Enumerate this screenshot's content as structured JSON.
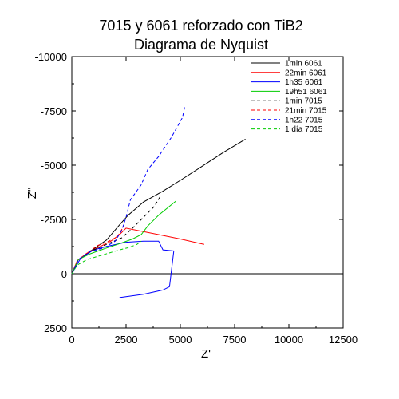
{
  "chart_data": {
    "type": "line",
    "title": "7015 y 6061 reforzado con TiB2",
    "subtitle": "Diagrama de Nyquist",
    "xlabel": "Z'",
    "ylabel": "Z\"",
    "xlim": [
      0,
      12500
    ],
    "ylim": [
      2500,
      -10000
    ],
    "y_inverted": true,
    "x_ticks": [
      "0",
      "2500",
      "5000",
      "7500",
      "10000",
      "12500"
    ],
    "x_tick_values": [
      0,
      2500,
      5000,
      7500,
      10000,
      12500
    ],
    "y_ticks": [
      "-10000",
      "-7500",
      "-5000",
      "-2500",
      "0",
      "2500"
    ],
    "y_tick_values": [
      -10000,
      -7500,
      -5000,
      -2500,
      0,
      2500
    ],
    "zero_line": true,
    "grid": false,
    "legend_position": "top-right",
    "series": [
      {
        "name": "1min 6061",
        "color": "#000000",
        "dash": "solid",
        "points": [
          [
            0,
            0
          ],
          [
            300,
            -650
          ],
          [
            800,
            -1000
          ],
          [
            1600,
            -1550
          ],
          [
            2200,
            -2250
          ],
          [
            2600,
            -2700
          ],
          [
            3300,
            -3300
          ],
          [
            4200,
            -3800
          ],
          [
            5000,
            -4300
          ],
          [
            6000,
            -4950
          ],
          [
            7000,
            -5600
          ],
          [
            8000,
            -6200
          ]
        ]
      },
      {
        "name": "22min 6061",
        "color": "#ff0000",
        "dash": "solid",
        "points": [
          [
            0,
            0
          ],
          [
            250,
            -600
          ],
          [
            700,
            -950
          ],
          [
            1300,
            -1250
          ],
          [
            1800,
            -1500
          ],
          [
            2200,
            -1800
          ],
          [
            2500,
            -2100
          ],
          [
            3000,
            -2000
          ],
          [
            4000,
            -1800
          ],
          [
            5000,
            -1600
          ],
          [
            6100,
            -1350
          ]
        ]
      },
      {
        "name": "1h35 6061",
        "color": "#0000ff",
        "dash": "solid",
        "points": [
          [
            0,
            0
          ],
          [
            400,
            -700
          ],
          [
            1000,
            -1100
          ],
          [
            1800,
            -1300
          ],
          [
            2500,
            -1450
          ],
          [
            3300,
            -1500
          ],
          [
            4000,
            -1500
          ],
          [
            4200,
            -1100
          ],
          [
            4700,
            -1050
          ],
          [
            4500,
            600
          ],
          [
            4200,
            750
          ],
          [
            3300,
            950
          ],
          [
            2200,
            1100
          ]
        ]
      },
      {
        "name": "19h51 6061",
        "color": "#00cc00",
        "dash": "solid",
        "points": [
          [
            0,
            0
          ],
          [
            300,
            -650
          ],
          [
            800,
            -900
          ],
          [
            1500,
            -1150
          ],
          [
            2100,
            -1350
          ],
          [
            2800,
            -1600
          ],
          [
            3200,
            -1800
          ],
          [
            3500,
            -2200
          ],
          [
            4000,
            -2700
          ],
          [
            4800,
            -3350
          ]
        ]
      },
      {
        "name": "1min 7015",
        "color": "#000000",
        "dash": "dashed",
        "points": [
          [
            0,
            0
          ],
          [
            300,
            -650
          ],
          [
            900,
            -1050
          ],
          [
            1600,
            -1350
          ],
          [
            2300,
            -1650
          ],
          [
            2800,
            -2100
          ],
          [
            3300,
            -2600
          ],
          [
            3800,
            -3100
          ],
          [
            4100,
            -3600
          ]
        ]
      },
      {
        "name": "21min 7015",
        "color": "#ff0000",
        "dash": "dashed",
        "points": [
          [
            0,
            0
          ],
          [
            250,
            -600
          ],
          [
            700,
            -950
          ],
          [
            1200,
            -1300
          ],
          [
            1700,
            -1500
          ],
          [
            2100,
            -1700
          ],
          [
            2400,
            -2200
          ]
        ]
      },
      {
        "name": "1h22 7015",
        "color": "#0000ff",
        "dash": "dashed",
        "points": [
          [
            0,
            0
          ],
          [
            300,
            -650
          ],
          [
            800,
            -1000
          ],
          [
            1500,
            -1200
          ],
          [
            2000,
            -1500
          ],
          [
            2300,
            -2000
          ],
          [
            2500,
            -2600
          ],
          [
            2700,
            -3400
          ],
          [
            3200,
            -4100
          ],
          [
            3500,
            -4800
          ],
          [
            4000,
            -5400
          ],
          [
            4600,
            -6300
          ],
          [
            5100,
            -7200
          ],
          [
            5200,
            -7700
          ]
        ]
      },
      {
        "name": "1 día 7015",
        "color": "#00cc00",
        "dash": "dashed",
        "points": [
          [
            0,
            0
          ],
          [
            250,
            -400
          ],
          [
            700,
            -650
          ],
          [
            1200,
            -800
          ],
          [
            1700,
            -950
          ],
          [
            2200,
            -1100
          ],
          [
            2600,
            -1200
          ],
          [
            3000,
            -1350
          ],
          [
            3200,
            -1500
          ]
        ]
      }
    ]
  }
}
